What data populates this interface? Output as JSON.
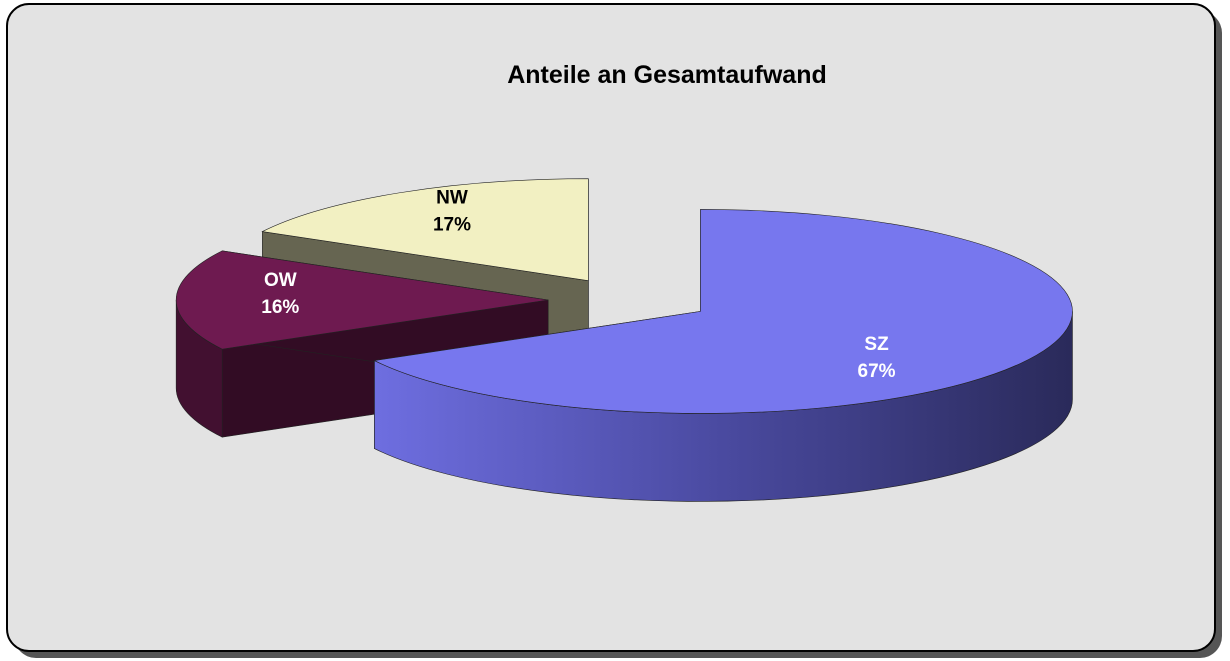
{
  "chart_data": {
    "type": "pie3d",
    "title": "Anteile an Gesamtaufwand",
    "categories": [
      "SZ",
      "OW",
      "NW"
    ],
    "values": [
      67,
      16,
      17
    ],
    "value_labels": [
      "67%",
      "16%",
      "17%"
    ],
    "colors": [
      "#7777ee",
      "#6e1a50",
      "#f2f0c2"
    ],
    "label_colors": [
      "#ffffff",
      "#ffffff",
      "#000000"
    ]
  }
}
